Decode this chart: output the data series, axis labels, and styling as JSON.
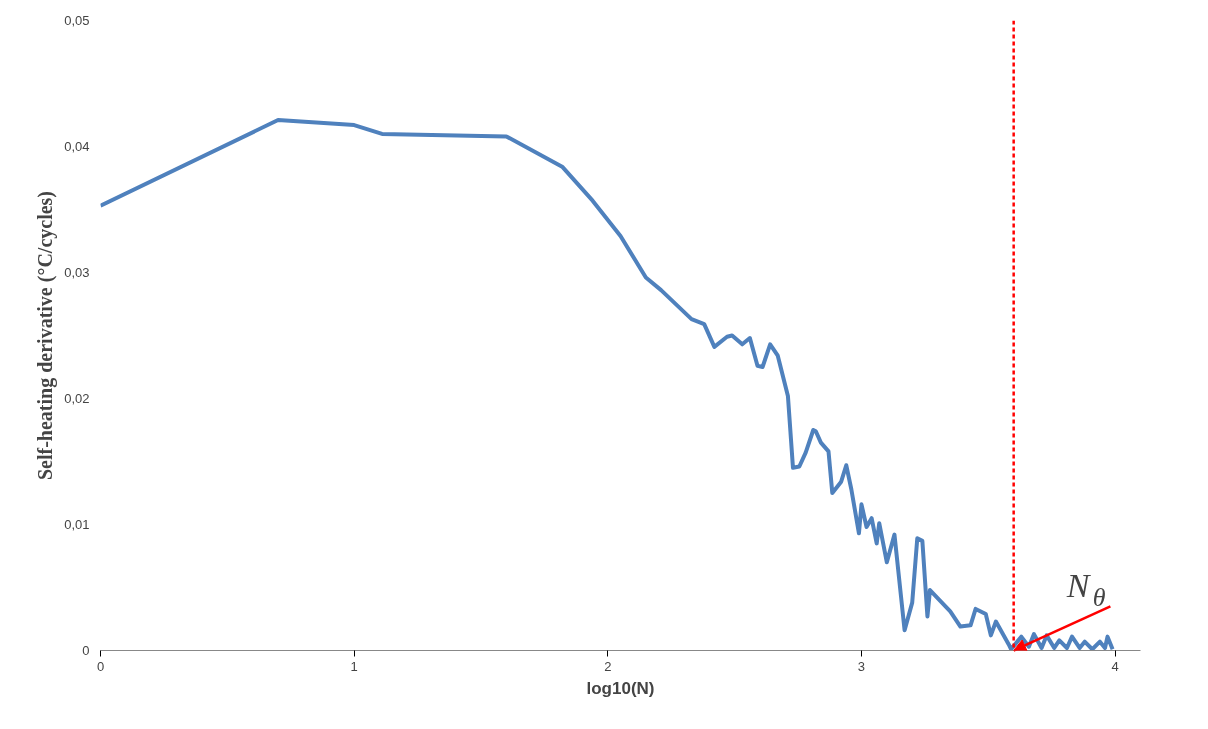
{
  "chart_data": {
    "type": "line",
    "xlabel": "log10(N)",
    "ylabel": "Self-heating derivative (°C/cycles)",
    "x": [
      0,
      0.7,
      1.0,
      1.11,
      1.6,
      1.82,
      1.94,
      2.05,
      2.15,
      2.21,
      2.33,
      2.38,
      2.42,
      2.47,
      2.49,
      2.53,
      2.56,
      2.59,
      2.61,
      2.64,
      2.67,
      2.71,
      2.73,
      2.755,
      2.78,
      2.81,
      2.82,
      2.84,
      2.87,
      2.885,
      2.92,
      2.94,
      2.96,
      2.99,
      3.0,
      3.02,
      3.04,
      3.06,
      3.07,
      3.1,
      3.13,
      3.17,
      3.2,
      3.22,
      3.24,
      3.26,
      3.27,
      3.35,
      3.39,
      3.43,
      3.45,
      3.49,
      3.51,
      3.53,
      3.58,
      3.59,
      3.63,
      3.66,
      3.68,
      3.71,
      3.73,
      3.76,
      3.78,
      3.81,
      3.83,
      3.86,
      3.88,
      3.91,
      3.94,
      3.96,
      3.97,
      3.99
    ],
    "series": [
      {
        "color": "#4f81bd",
        "values": [
          0.0353,
          0.0421,
          0.0417,
          0.041,
          0.0408,
          0.0384,
          0.0357,
          0.0329,
          0.0296,
          0.0286,
          0.0263,
          0.0259,
          0.0241,
          0.0249,
          0.025,
          0.0243,
          0.0248,
          0.0226,
          0.0225,
          0.0243,
          0.0234,
          0.0202,
          0.0145,
          0.0146,
          0.0157,
          0.0175,
          0.0174,
          0.0165,
          0.0158,
          0.0125,
          0.0134,
          0.0147,
          0.0128,
          0.0093,
          0.0116,
          0.0098,
          0.0105,
          0.0085,
          0.0101,
          0.007,
          0.0092,
          0.0016,
          0.0038,
          0.0089,
          0.0087,
          0.0027,
          0.0048,
          0.0031,
          0.0019,
          0.002,
          0.0033,
          0.0029,
          0.0012,
          0.0023,
          0.0005,
          0.0001,
          0.0011,
          0.0003,
          0.0013,
          0.0002,
          0.0012,
          0.0002,
          0.0008,
          0.0002,
          0.0011,
          0.0002,
          0.0007,
          0.0001,
          0.0007,
          0.0002,
          0.0011,
          0.0001
        ]
      }
    ],
    "xlim": [
      0,
      4.1
    ],
    "ylim": [
      0,
      0.05
    ],
    "xticks": [
      0,
      1,
      2,
      3,
      4
    ],
    "yticks": [
      {
        "value": 0,
        "label": "0"
      },
      {
        "value": 0.01,
        "label": "0,01"
      },
      {
        "value": 0.02,
        "label": "0,02"
      },
      {
        "value": 0.03,
        "label": "0,03"
      },
      {
        "value": 0.04,
        "label": "0,04"
      },
      {
        "value": 0.05,
        "label": "0,05"
      }
    ],
    "ref_lines": [
      {
        "axis": "x",
        "value": 3.6,
        "color": "#ff0000",
        "line_style": "dashed"
      }
    ],
    "annotations": [
      {
        "text": "N$_{θ}$",
        "x": 3.6,
        "y": 0
      }
    ],
    "grid": false,
    "marker": "none",
    "line_style": "solid"
  }
}
